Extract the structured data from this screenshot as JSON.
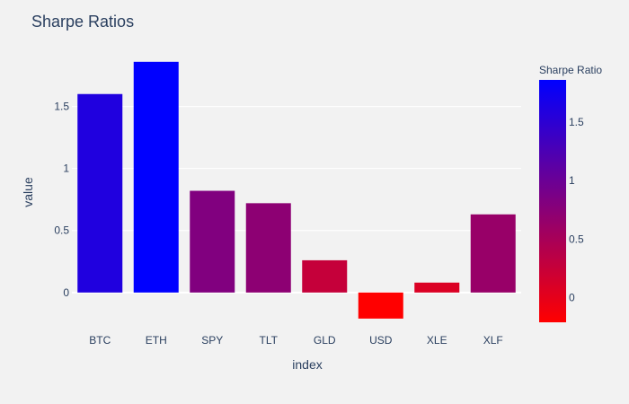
{
  "chart_data": {
    "type": "bar",
    "title": "Sharpe Ratios",
    "xlabel": "index",
    "ylabel": "value",
    "categories": [
      "BTC",
      "ETH",
      "SPY",
      "TLT",
      "GLD",
      "USD",
      "XLE",
      "XLF"
    ],
    "values": [
      1.6,
      1.86,
      0.82,
      0.72,
      0.26,
      -0.21,
      0.08,
      0.63
    ],
    "ylim": [
      -0.24,
      1.96
    ],
    "yticks": [
      0,
      0.5,
      1,
      1.5
    ],
    "ytick_labels": [
      "0",
      "0.5",
      "1",
      "1.5"
    ],
    "grid": true,
    "legend": "none",
    "colorbar": {
      "title": "Sharpe Ratio",
      "range": [
        -0.21,
        1.86
      ],
      "ticks": [
        0,
        0.5,
        1,
        1.5
      ],
      "tick_labels": [
        "0",
        "0.5",
        "1",
        "1.5"
      ],
      "colors": [
        "#ff0000",
        "#800080",
        "#0000ff"
      ]
    }
  },
  "colors": {
    "background": "#f2f2f2",
    "grid": "#ffffff",
    "text": "#2a3f5f"
  }
}
